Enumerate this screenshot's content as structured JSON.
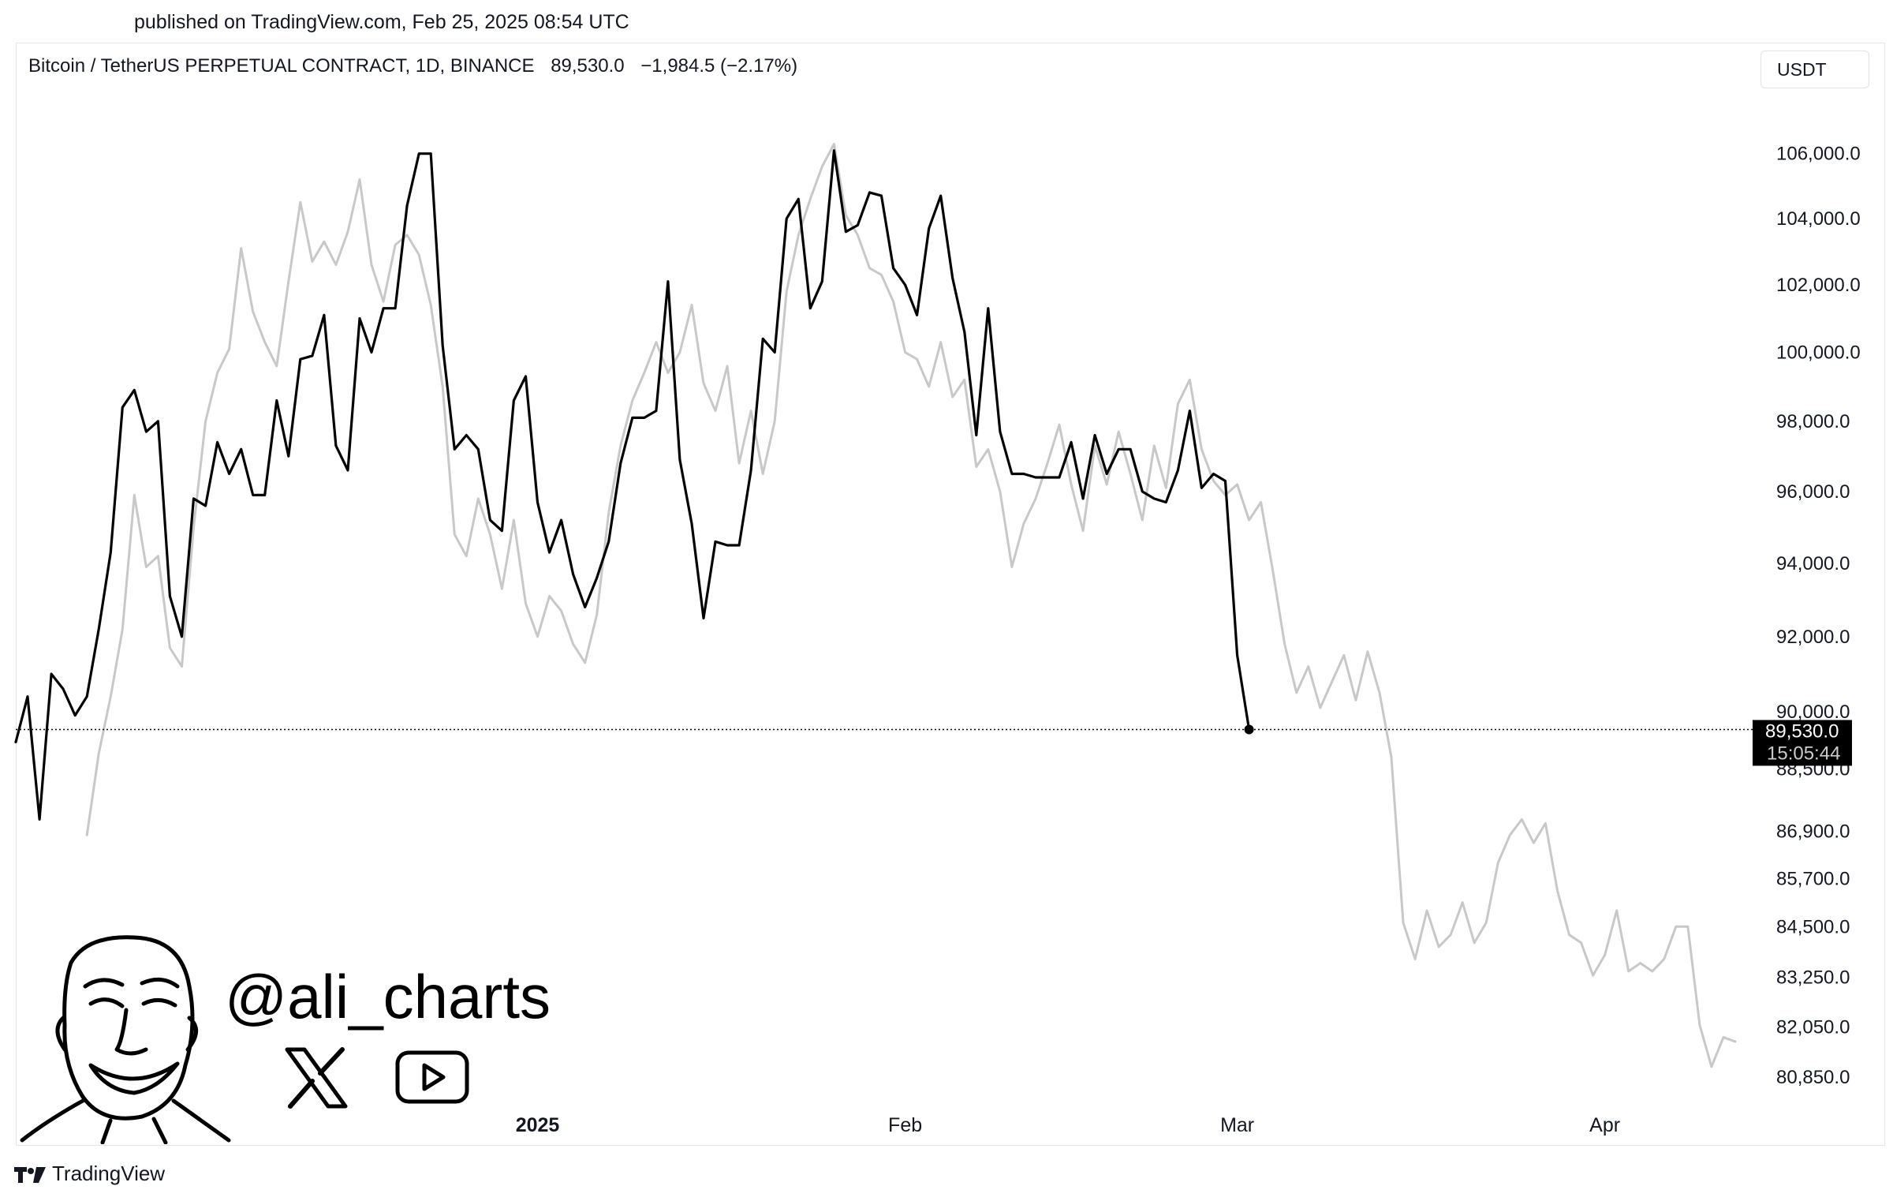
{
  "header": {
    "published": "published on TradingView.com, Feb 25, 2025 08:54 UTC"
  },
  "legend": {
    "symbol": "Bitcoin / TetherUS PERPETUAL CONTRACT, 1D, BINANCE",
    "price": "89,530.0",
    "change": "−1,984.5 (−2.17%)"
  },
  "currency": "USDT",
  "price_tag": {
    "price": "89,530.0",
    "countdown": "15:05:44"
  },
  "overlay": {
    "handle": "@ali_charts"
  },
  "footer": {
    "brand": "TradingView"
  },
  "icons": {
    "x": "x-logo-icon",
    "youtube": "youtube-play-icon",
    "avatar": "caricature-avatar",
    "brand": "tradingview-logo-icon"
  },
  "colors": {
    "primary_line": "#000000",
    "fractal_line": "#c8c8c8",
    "tag_bg": "#000000"
  },
  "chart_data": {
    "type": "line",
    "title": "",
    "xlabel": "",
    "ylabel": "",
    "y_scale": "log",
    "ylim": [
      80200,
      107600
    ],
    "y_ticks": [
      {
        "value": 106000,
        "label": "106,000.0"
      },
      {
        "value": 104000,
        "label": "104,000.0"
      },
      {
        "value": 102000,
        "label": "102,000.0"
      },
      {
        "value": 100000,
        "label": "100,000.0"
      },
      {
        "value": 98000,
        "label": "98,000.0"
      },
      {
        "value": 96000,
        "label": "96,000.0"
      },
      {
        "value": 94000,
        "label": "94,000.0"
      },
      {
        "value": 92000,
        "label": "92,000.0"
      },
      {
        "value": 90000,
        "label": "90,000.0"
      },
      {
        "value": 88500,
        "label": "88,500.0"
      },
      {
        "value": 86900,
        "label": "86,900.0"
      },
      {
        "value": 85700,
        "label": "85,700.0"
      },
      {
        "value": 84500,
        "label": "84,500.0"
      },
      {
        "value": 83250,
        "label": "83,250.0"
      },
      {
        "value": 82050,
        "label": "82,050.0"
      },
      {
        "value": 80850,
        "label": "80,850.0"
      }
    ],
    "x_range": [
      "2024-11-18",
      "2025-04-12"
    ],
    "x_ticks": [
      {
        "date": "2025-01-01",
        "label": "2025",
        "bold": true
      },
      {
        "date": "2025-02-01",
        "label": "Feb",
        "bold": false
      },
      {
        "date": "2025-03-01",
        "label": "Mar",
        "bold": false
      },
      {
        "date": "2025-04-01",
        "label": "Apr",
        "bold": false
      }
    ],
    "current_price": 89530,
    "grid": false,
    "series": [
      {
        "style": "primary",
        "points": [
          [
            "2024-11-18",
            89200
          ],
          [
            "2024-11-19",
            90400
          ],
          [
            "2024-11-20",
            87200
          ],
          [
            "2024-11-21",
            91000
          ],
          [
            "2024-11-22",
            90600
          ],
          [
            "2024-11-23",
            89900
          ],
          [
            "2024-11-24",
            90400
          ],
          [
            "2024-11-25",
            92200
          ],
          [
            "2024-11-26",
            94300
          ],
          [
            "2024-11-27",
            98400
          ],
          [
            "2024-11-28",
            98900
          ],
          [
            "2024-11-29",
            97700
          ],
          [
            "2024-11-30",
            98000
          ],
          [
            "2024-12-01",
            93100
          ],
          [
            "2024-12-02",
            92000
          ],
          [
            "2024-12-03",
            95800
          ],
          [
            "2024-12-04",
            95600
          ],
          [
            "2024-12-05",
            97400
          ],
          [
            "2024-12-06",
            96500
          ],
          [
            "2024-12-07",
            97200
          ],
          [
            "2024-12-08",
            95900
          ],
          [
            "2024-12-09",
            95900
          ],
          [
            "2024-12-10",
            98600
          ],
          [
            "2024-12-11",
            97000
          ],
          [
            "2024-12-12",
            99800
          ],
          [
            "2024-12-13",
            99900
          ],
          [
            "2024-12-14",
            101100
          ],
          [
            "2024-12-15",
            97300
          ],
          [
            "2024-12-16",
            96600
          ],
          [
            "2024-12-17",
            101000
          ],
          [
            "2024-12-18",
            100000
          ],
          [
            "2024-12-19",
            101300
          ],
          [
            "2024-12-20",
            101300
          ],
          [
            "2024-12-21",
            104400
          ],
          [
            "2024-12-22",
            106000
          ],
          [
            "2024-12-23",
            106000
          ],
          [
            "2024-12-24",
            100200
          ],
          [
            "2024-12-25",
            97200
          ],
          [
            "2024-12-26",
            97600
          ],
          [
            "2024-12-27",
            97200
          ],
          [
            "2024-12-28",
            95200
          ],
          [
            "2024-12-29",
            94900
          ],
          [
            "2024-12-30",
            98600
          ],
          [
            "2024-12-31",
            99300
          ],
          [
            "2025-01-01",
            95700
          ],
          [
            "2025-01-02",
            94300
          ],
          [
            "2025-01-03",
            95200
          ],
          [
            "2025-01-04",
            93700
          ],
          [
            "2025-01-05",
            92800
          ],
          [
            "2025-01-06",
            93600
          ],
          [
            "2025-01-07",
            94600
          ],
          [
            "2025-01-08",
            96800
          ],
          [
            "2025-01-09",
            98100
          ],
          [
            "2025-01-10",
            98100
          ],
          [
            "2025-01-11",
            98300
          ],
          [
            "2025-01-12",
            102100
          ],
          [
            "2025-01-13",
            96900
          ],
          [
            "2025-01-14",
            95100
          ],
          [
            "2025-01-15",
            92500
          ],
          [
            "2025-01-16",
            94600
          ],
          [
            "2025-01-17",
            94500
          ],
          [
            "2025-01-18",
            94500
          ],
          [
            "2025-01-19",
            96600
          ],
          [
            "2025-01-20",
            100400
          ],
          [
            "2025-01-21",
            100000
          ],
          [
            "2025-01-22",
            104000
          ],
          [
            "2025-01-23",
            104600
          ],
          [
            "2025-01-24",
            101300
          ],
          [
            "2025-01-25",
            102100
          ],
          [
            "2025-01-26",
            106100
          ],
          [
            "2025-01-27",
            103600
          ],
          [
            "2025-01-28",
            103800
          ],
          [
            "2025-01-29",
            104800
          ],
          [
            "2025-01-30",
            104700
          ],
          [
            "2025-01-31",
            102500
          ],
          [
            "2025-02-01",
            102000
          ],
          [
            "2025-02-02",
            101100
          ],
          [
            "2025-02-03",
            103700
          ],
          [
            "2025-02-04",
            104700
          ],
          [
            "2025-02-05",
            102200
          ],
          [
            "2025-02-06",
            100600
          ],
          [
            "2025-02-07",
            97600
          ],
          [
            "2025-02-08",
            101300
          ],
          [
            "2025-02-09",
            97700
          ],
          [
            "2025-02-10",
            96500
          ],
          [
            "2025-02-11",
            96500
          ],
          [
            "2025-02-12",
            96400
          ],
          [
            "2025-02-13",
            96400
          ],
          [
            "2025-02-14",
            96400
          ],
          [
            "2025-02-15",
            97400
          ],
          [
            "2025-02-16",
            95800
          ],
          [
            "2025-02-17",
            97600
          ],
          [
            "2025-02-18",
            96500
          ],
          [
            "2025-02-19",
            97200
          ],
          [
            "2025-02-20",
            97200
          ],
          [
            "2025-02-21",
            96000
          ],
          [
            "2025-02-22",
            95800
          ],
          [
            "2025-02-23",
            95700
          ],
          [
            "2025-02-24",
            96600
          ],
          [
            "2025-02-25",
            98300
          ],
          [
            "2025-02-26",
            96100
          ],
          [
            "2025-02-27",
            96500
          ],
          [
            "2025-02-28",
            96300
          ],
          [
            "2025-03-01",
            91500
          ],
          [
            "2025-03-02",
            89530
          ]
        ]
      },
      {
        "style": "fractal",
        "points": [
          [
            "2024-11-24",
            86800
          ],
          [
            "2024-11-25",
            88900
          ],
          [
            "2024-11-26",
            90400
          ],
          [
            "2024-11-27",
            92200
          ],
          [
            "2024-11-28",
            95900
          ],
          [
            "2024-11-29",
            93900
          ],
          [
            "2024-11-30",
            94200
          ],
          [
            "2024-12-01",
            91700
          ],
          [
            "2024-12-02",
            91200
          ],
          [
            "2024-12-03",
            95000
          ],
          [
            "2024-12-04",
            98000
          ],
          [
            "2024-12-05",
            99400
          ],
          [
            "2024-12-06",
            100100
          ],
          [
            "2024-12-07",
            103100
          ],
          [
            "2024-12-08",
            101200
          ],
          [
            "2024-12-09",
            100300
          ],
          [
            "2024-12-10",
            99600
          ],
          [
            "2024-12-11",
            102100
          ],
          [
            "2024-12-12",
            104500
          ],
          [
            "2024-12-13",
            102700
          ],
          [
            "2024-12-14",
            103300
          ],
          [
            "2024-12-15",
            102600
          ],
          [
            "2024-12-16",
            103600
          ],
          [
            "2024-12-17",
            105200
          ],
          [
            "2024-12-18",
            102600
          ],
          [
            "2024-12-19",
            101500
          ],
          [
            "2024-12-20",
            103200
          ],
          [
            "2024-12-21",
            103500
          ],
          [
            "2024-12-22",
            102900
          ],
          [
            "2024-12-23",
            101400
          ],
          [
            "2024-12-24",
            99000
          ],
          [
            "2024-12-25",
            94800
          ],
          [
            "2024-12-26",
            94200
          ],
          [
            "2024-12-27",
            95800
          ],
          [
            "2024-12-28",
            94800
          ],
          [
            "2024-12-29",
            93300
          ],
          [
            "2024-12-30",
            95200
          ],
          [
            "2024-12-31",
            92900
          ],
          [
            "2025-01-01",
            92000
          ],
          [
            "2025-01-02",
            93100
          ],
          [
            "2025-01-03",
            92700
          ],
          [
            "2025-01-04",
            91800
          ],
          [
            "2025-01-05",
            91300
          ],
          [
            "2025-01-06",
            92600
          ],
          [
            "2025-01-07",
            95400
          ],
          [
            "2025-01-08",
            97300
          ],
          [
            "2025-01-09",
            98600
          ],
          [
            "2025-01-10",
            99400
          ],
          [
            "2025-01-11",
            100300
          ],
          [
            "2025-01-12",
            99400
          ],
          [
            "2025-01-13",
            100000
          ],
          [
            "2025-01-14",
            101400
          ],
          [
            "2025-01-15",
            99100
          ],
          [
            "2025-01-16",
            98300
          ],
          [
            "2025-01-17",
            99600
          ],
          [
            "2025-01-18",
            96800
          ],
          [
            "2025-01-19",
            98300
          ],
          [
            "2025-01-20",
            96500
          ],
          [
            "2025-01-21",
            98000
          ],
          [
            "2025-01-22",
            101800
          ],
          [
            "2025-01-23",
            103500
          ],
          [
            "2025-01-24",
            104600
          ],
          [
            "2025-01-25",
            105600
          ],
          [
            "2025-01-26",
            106300
          ],
          [
            "2025-01-27",
            104100
          ],
          [
            "2025-01-28",
            103500
          ],
          [
            "2025-01-29",
            102500
          ],
          [
            "2025-01-30",
            102300
          ],
          [
            "2025-01-31",
            101500
          ],
          [
            "2025-02-01",
            100000
          ],
          [
            "2025-02-02",
            99800
          ],
          [
            "2025-02-03",
            99000
          ],
          [
            "2025-02-04",
            100300
          ],
          [
            "2025-02-05",
            98700
          ],
          [
            "2025-02-06",
            99200
          ],
          [
            "2025-02-07",
            96700
          ],
          [
            "2025-02-08",
            97200
          ],
          [
            "2025-02-09",
            96000
          ],
          [
            "2025-02-10",
            93900
          ],
          [
            "2025-02-11",
            95100
          ],
          [
            "2025-02-12",
            95800
          ],
          [
            "2025-02-13",
            96800
          ],
          [
            "2025-02-14",
            97900
          ],
          [
            "2025-02-15",
            96200
          ],
          [
            "2025-02-16",
            94900
          ],
          [
            "2025-02-17",
            97300
          ],
          [
            "2025-02-18",
            96200
          ],
          [
            "2025-02-19",
            97700
          ],
          [
            "2025-02-20",
            96500
          ],
          [
            "2025-02-21",
            95200
          ],
          [
            "2025-02-22",
            97300
          ],
          [
            "2025-02-23",
            96100
          ],
          [
            "2025-02-24",
            98500
          ],
          [
            "2025-02-25",
            99200
          ],
          [
            "2025-02-26",
            97200
          ],
          [
            "2025-02-27",
            96300
          ],
          [
            "2025-02-28",
            95900
          ],
          [
            "2025-03-01",
            96200
          ],
          [
            "2025-03-02",
            95200
          ],
          [
            "2025-03-03",
            95700
          ],
          [
            "2025-03-04",
            93800
          ],
          [
            "2025-03-05",
            91800
          ],
          [
            "2025-03-06",
            90500
          ],
          [
            "2025-03-07",
            91200
          ],
          [
            "2025-03-08",
            90100
          ],
          [
            "2025-03-09",
            90800
          ],
          [
            "2025-03-10",
            91500
          ],
          [
            "2025-03-11",
            90300
          ],
          [
            "2025-03-12",
            91600
          ],
          [
            "2025-03-13",
            90500
          ],
          [
            "2025-03-14",
            88800
          ],
          [
            "2025-03-15",
            84600
          ],
          [
            "2025-03-16",
            83700
          ],
          [
            "2025-03-17",
            84900
          ],
          [
            "2025-03-18",
            84000
          ],
          [
            "2025-03-19",
            84300
          ],
          [
            "2025-03-20",
            85100
          ],
          [
            "2025-03-21",
            84100
          ],
          [
            "2025-03-22",
            84600
          ],
          [
            "2025-03-23",
            86100
          ],
          [
            "2025-03-24",
            86800
          ],
          [
            "2025-03-25",
            87200
          ],
          [
            "2025-03-26",
            86600
          ],
          [
            "2025-03-27",
            87100
          ],
          [
            "2025-03-28",
            85400
          ],
          [
            "2025-03-29",
            84300
          ],
          [
            "2025-03-30",
            84100
          ],
          [
            "2025-03-31",
            83300
          ],
          [
            "2025-04-01",
            83800
          ],
          [
            "2025-04-02",
            84900
          ],
          [
            "2025-04-03",
            83400
          ],
          [
            "2025-04-04",
            83600
          ],
          [
            "2025-04-05",
            83400
          ],
          [
            "2025-04-06",
            83700
          ],
          [
            "2025-04-07",
            84500
          ],
          [
            "2025-04-08",
            84500
          ],
          [
            "2025-04-09",
            82100
          ],
          [
            "2025-04-10",
            81100
          ],
          [
            "2025-04-11",
            81800
          ],
          [
            "2025-04-12",
            81700
          ]
        ]
      }
    ]
  }
}
